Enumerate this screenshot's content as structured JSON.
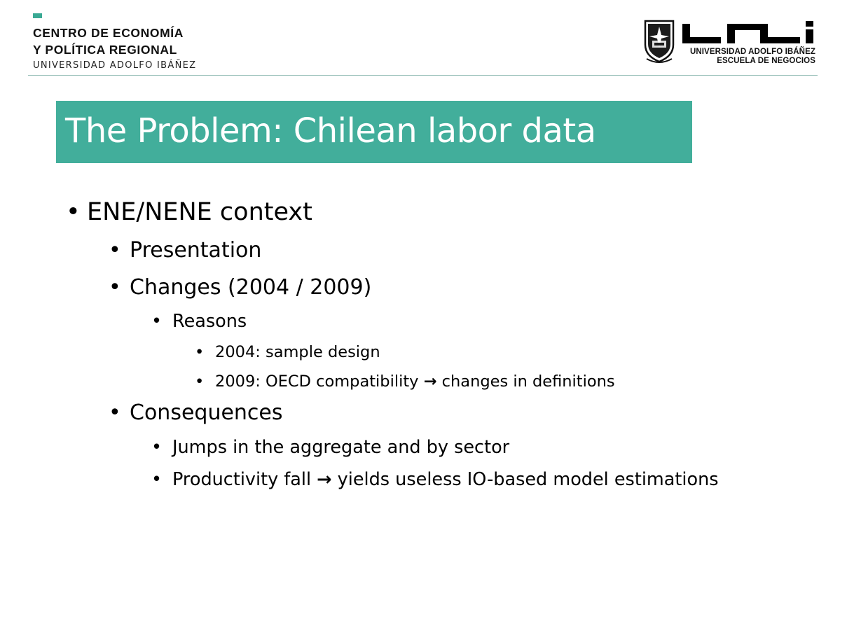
{
  "header": {
    "org_line1": "CENTRO DE ECONOMÍA",
    "org_line2": "Y POLÍTICA REGIONAL",
    "org_line3": "UNIVERSIDAD ADOLFO IBÁÑEZ",
    "logo_university": "UNIVERSIDAD ADOLFO IBÁÑEZ",
    "logo_school": "ESCUELA DE NEGOCIOS",
    "accent_color": "#42ae9b"
  },
  "title": "The Problem: Chilean labor data",
  "bullets": {
    "b1": "ENE/NENE context",
    "b1_1": "Presentation",
    "b1_2": "Changes (2004 / 2009)",
    "b1_2_1": "Reasons",
    "b1_2_1_1": "2004: sample design",
    "b1_2_1_2_pre": "2009: OECD compatibility",
    "b1_2_1_2_arrow": "→",
    "b1_2_1_2_post": "changes in definitions",
    "b1_3": "Consequences",
    "b1_3_1": "Jumps in the aggregate and by sector",
    "b1_3_2_pre": "Productivity fall",
    "b1_3_2_arrow": "→",
    "b1_3_2_post": "yields useless IO-based model estimations"
  },
  "bullet_glyph": "•"
}
